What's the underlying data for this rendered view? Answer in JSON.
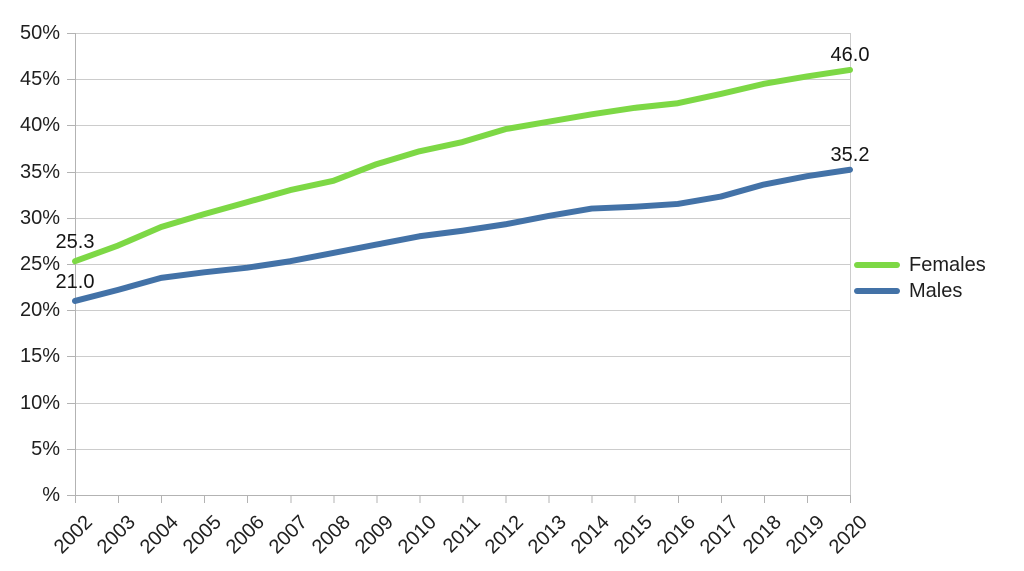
{
  "chart_data": {
    "type": "line",
    "title": "",
    "xlabel": "",
    "ylabel": "",
    "x": [
      2002,
      2003,
      2004,
      2005,
      2006,
      2007,
      2008,
      2009,
      2010,
      2011,
      2012,
      2013,
      2014,
      2015,
      2016,
      2017,
      2018,
      2019,
      2020
    ],
    "series": [
      {
        "name": "Females",
        "color": "#7dd845",
        "values": [
          25.3,
          27.0,
          29.0,
          30.4,
          31.7,
          33.0,
          34.0,
          35.8,
          37.2,
          38.2,
          39.6,
          40.4,
          41.2,
          41.9,
          42.4,
          43.4,
          44.5,
          45.3,
          46.0
        ],
        "point_labels": {
          "first": "25.3",
          "last": "46.0"
        }
      },
      {
        "name": "Males",
        "color": "#4372a7",
        "values": [
          21.0,
          22.2,
          23.5,
          24.1,
          24.6,
          25.3,
          26.2,
          27.1,
          28.0,
          28.6,
          29.3,
          30.2,
          31.0,
          31.2,
          31.5,
          32.3,
          33.6,
          34.5,
          35.2
        ],
        "point_labels": {
          "first": "21.0",
          "last": "35.2"
        }
      }
    ],
    "y_axis": {
      "tick_labels": [
        "50%",
        "45%",
        "40%",
        "35%",
        "30%",
        "25%",
        "20%",
        "15%",
        "10%",
        "5%",
        "%"
      ],
      "tick_values": [
        50,
        45,
        40,
        35,
        30,
        25,
        20,
        15,
        10,
        5,
        0
      ]
    },
    "x_axis": {
      "tick_labels": [
        "2002",
        "2003",
        "2004",
        "2005",
        "2006",
        "2007",
        "2008",
        "2009",
        "2010",
        "2011",
        "2012",
        "2013",
        "2014",
        "2015",
        "2016",
        "2017",
        "2018",
        "2019",
        "2020"
      ]
    },
    "ylim": [
      0,
      50
    ],
    "grid": true,
    "legend_position": "right",
    "colors": {
      "gridline": "#cccccc",
      "axis": "#b3b3b3",
      "text": "#1f1f1f",
      "background": "#ffffff"
    }
  }
}
